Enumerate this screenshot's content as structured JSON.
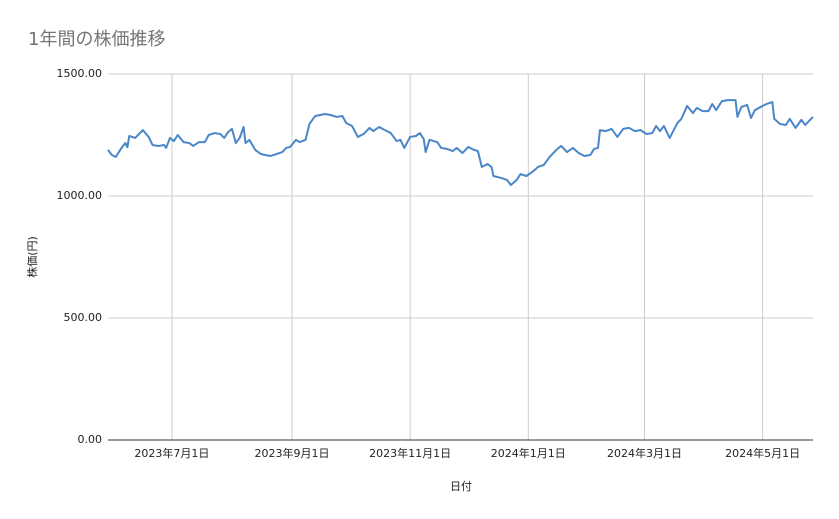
{
  "chart_data": {
    "type": "line",
    "title": "1年間の株価推移",
    "x_label": "日付",
    "y_label": "株価(円)",
    "color": "#4a86c8",
    "grid": true,
    "xlim": [
      "2023-05-29",
      "2024-05-27"
    ],
    "xticks": [
      {
        "value": "2023-07-01",
        "label": "2023年7月1日"
      },
      {
        "value": "2023-09-01",
        "label": "2023年9月1日"
      },
      {
        "value": "2023-11-01",
        "label": "2023年11月1日"
      },
      {
        "value": "2024-01-01",
        "label": "2024年1月1日"
      },
      {
        "value": "2024-03-01",
        "label": "2024年3月1日"
      },
      {
        "value": "2024-05-01",
        "label": "2024年5月1日"
      }
    ],
    "ylim": [
      0,
      1500
    ],
    "yticks": [
      {
        "value": 0,
        "label": "0.00"
      },
      {
        "value": 500,
        "label": "500.00"
      },
      {
        "value": 1000,
        "label": "1000.00"
      },
      {
        "value": 1500,
        "label": "1500.00"
      }
    ],
    "x": [
      "2023-05-29",
      "2023-05-31",
      "2023-06-02",
      "2023-06-05",
      "2023-06-07",
      "2023-06-08",
      "2023-06-09",
      "2023-06-12",
      "2023-06-16",
      "2023-06-19",
      "2023-06-21",
      "2023-06-24",
      "2023-06-27",
      "2023-06-28",
      "2023-06-30",
      "2023-07-02",
      "2023-07-04",
      "2023-07-07",
      "2023-07-10",
      "2023-07-12",
      "2023-07-15",
      "2023-07-18",
      "2023-07-20",
      "2023-07-23",
      "2023-07-26",
      "2023-07-28",
      "2023-07-30",
      "2023-08-01",
      "2023-08-03",
      "2023-08-05",
      "2023-08-07",
      "2023-08-08",
      "2023-08-10",
      "2023-08-13",
      "2023-08-16",
      "2023-08-18",
      "2023-08-21",
      "2023-08-24",
      "2023-08-27",
      "2023-08-29",
      "2023-08-31",
      "2023-09-03",
      "2023-09-05",
      "2023-09-08",
      "2023-09-10",
      "2023-09-13",
      "2023-09-18",
      "2023-09-21",
      "2023-09-24",
      "2023-09-27",
      "2023-09-29",
      "2023-10-02",
      "2023-10-05",
      "2023-10-08",
      "2023-10-11",
      "2023-10-13",
      "2023-10-16",
      "2023-10-19",
      "2023-10-22",
      "2023-10-25",
      "2023-10-27",
      "2023-10-29",
      "2023-11-01",
      "2023-11-04",
      "2023-11-06",
      "2023-11-08",
      "2023-11-09",
      "2023-11-11",
      "2023-11-15",
      "2023-11-17",
      "2023-11-20",
      "2023-11-23",
      "2023-11-25",
      "2023-11-28",
      "2023-12-01",
      "2023-12-04",
      "2023-12-06",
      "2023-12-08",
      "2023-12-11",
      "2023-12-13",
      "2023-12-14",
      "2023-12-18",
      "2023-12-21",
      "2023-12-23",
      "2023-12-26",
      "2023-12-28",
      "2023-12-31",
      "2024-01-03",
      "2024-01-06",
      "2024-01-09",
      "2024-01-12",
      "2024-01-16",
      "2024-01-18",
      "2024-01-21",
      "2024-01-24",
      "2024-01-27",
      "2024-01-30",
      "2024-02-02",
      "2024-02-04",
      "2024-02-06",
      "2024-02-07",
      "2024-02-10",
      "2024-02-13",
      "2024-02-16",
      "2024-02-19",
      "2024-02-22",
      "2024-02-25",
      "2024-02-28",
      "2024-03-02",
      "2024-03-05",
      "2024-03-07",
      "2024-03-09",
      "2024-03-11",
      "2024-03-14",
      "2024-03-18",
      "2024-03-20",
      "2024-03-23",
      "2024-03-26",
      "2024-03-28",
      "2024-03-31",
      "2024-04-03",
      "2024-04-05",
      "2024-04-07",
      "2024-04-10",
      "2024-04-13",
      "2024-04-17",
      "2024-04-18",
      "2024-04-20",
      "2024-04-23",
      "2024-04-25",
      "2024-04-27",
      "2024-04-30",
      "2024-05-03",
      "2024-05-06",
      "2024-05-07",
      "2024-05-10",
      "2024-05-13",
      "2024-05-15",
      "2024-05-18",
      "2024-05-21",
      "2024-05-23",
      "2024-05-25",
      "2024-05-27"
    ],
    "values": [
      1189,
      1168,
      1160,
      1197,
      1217,
      1200,
      1246,
      1238,
      1270,
      1242,
      1209,
      1205,
      1209,
      1197,
      1238,
      1225,
      1250,
      1221,
      1217,
      1205,
      1221,
      1221,
      1250,
      1258,
      1254,
      1238,
      1262,
      1275,
      1217,
      1238,
      1283,
      1217,
      1230,
      1189,
      1172,
      1168,
      1164,
      1172,
      1180,
      1197,
      1201,
      1230,
      1221,
      1230,
      1295,
      1328,
      1336,
      1332,
      1324,
      1328,
      1299,
      1287,
      1242,
      1254,
      1279,
      1266,
      1283,
      1270,
      1258,
      1225,
      1230,
      1197,
      1242,
      1246,
      1258,
      1234,
      1180,
      1230,
      1221,
      1197,
      1193,
      1184,
      1197,
      1176,
      1201,
      1189,
      1184,
      1119,
      1131,
      1119,
      1082,
      1074,
      1066,
      1045,
      1066,
      1090,
      1082,
      1098,
      1119,
      1127,
      1160,
      1193,
      1205,
      1180,
      1197,
      1176,
      1164,
      1168,
      1193,
      1197,
      1270,
      1266,
      1275,
      1242,
      1275,
      1279,
      1266,
      1270,
      1254,
      1258,
      1287,
      1266,
      1287,
      1238,
      1299,
      1316,
      1369,
      1340,
      1361,
      1348,
      1348,
      1377,
      1352,
      1389,
      1393,
      1393,
      1324,
      1365,
      1373,
      1320,
      1352,
      1365,
      1377,
      1385,
      1316,
      1295,
      1291,
      1316,
      1279,
      1312,
      1291,
      1308,
      1324
    ]
  }
}
